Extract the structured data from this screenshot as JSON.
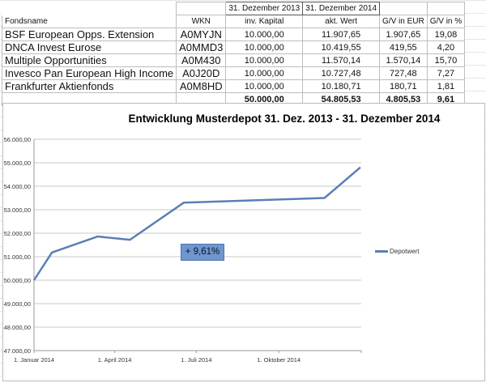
{
  "table": {
    "date_headers": [
      "31. Dezember 2013",
      "31. Dezember 2014"
    ],
    "columns": [
      "Fondsname",
      "WKN",
      "inv. Kapital",
      "akt. Wert",
      "G/V in EUR",
      "G/V in %"
    ],
    "rows": [
      [
        "BSF European Opps. Extension",
        "A0MYJN",
        "10.000,00",
        "11.907,65",
        "1.907,65",
        "19,08"
      ],
      [
        "DNCA Invest Eurose",
        "A0MMD3",
        "10.000,00",
        "10.419,55",
        "419,55",
        "4,20"
      ],
      [
        "Multiple Opportunities",
        "A0M430",
        "10.000,00",
        "11.570,14",
        "1.570,14",
        "15,70"
      ],
      [
        "Invesco Pan European High Income",
        "A0J20D",
        "10.000,00",
        "10.727,48",
        "727,48",
        "7,27"
      ],
      [
        "Frankfurter Aktienfonds",
        "A0M8HD",
        "10.000,00",
        "10.180,71",
        "180,71",
        "1,81"
      ]
    ],
    "totals": [
      "",
      "",
      "50.000,00",
      "54.805,53",
      "4.805,53",
      "9,61"
    ]
  },
  "chart_data": {
    "type": "line",
    "title": "Entwicklung Musterdepot 31. Dez. 2013 -  31. Dezember 2014",
    "ylim": [
      47000,
      56000
    ],
    "yticks": [
      "47.000,00",
      "48.000,00",
      "49.000,00",
      "50.000,00",
      "51.000,00",
      "52.000,00",
      "53.000,00",
      "54.000,00",
      "55.000,00",
      "56.000,00"
    ],
    "xlim": [
      "2014-01-01",
      "2015-01-01"
    ],
    "xticks": [
      {
        "date": "2014-01-01",
        "label": "1. Januar 2014"
      },
      {
        "date": "2014-04-01",
        "label": "1. April 2014"
      },
      {
        "date": "2014-07-01",
        "label": "1. Juli 2014"
      },
      {
        "date": "2014-10-01",
        "label": "1. Oktober 2014"
      }
    ],
    "grid": true,
    "legend_position": "right",
    "series": [
      {
        "name": "Depotwert",
        "color": "#5b7fb6",
        "x": [
          "2014-01-01",
          "2014-01-21",
          "2014-03-13",
          "2014-04-18",
          "2014-06-17",
          "2014-11-21",
          "2014-12-31"
        ],
        "y": [
          50000,
          51180,
          51860,
          51720,
          53300,
          53500,
          54805.53
        ]
      }
    ],
    "annotation": "+ 9,61%"
  }
}
